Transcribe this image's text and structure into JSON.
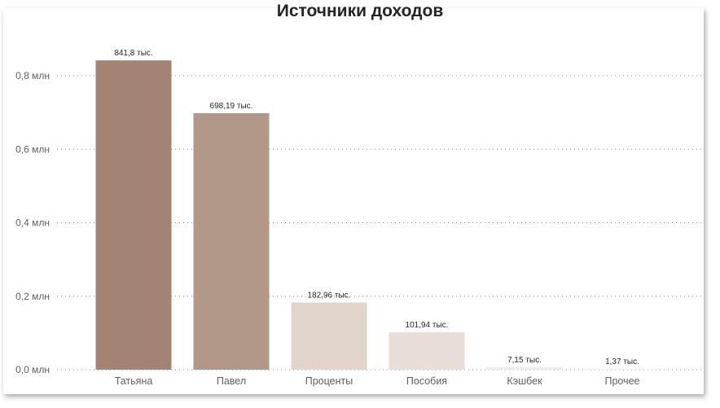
{
  "chart_data": {
    "type": "bar",
    "title": "Источники доходов",
    "categories": [
      "Татьяна",
      "Павел",
      "Проценты",
      "Пособия",
      "Кэшбек",
      "Прочее"
    ],
    "values": [
      841800,
      698190,
      182960,
      101940,
      7150,
      1370
    ],
    "data_labels": [
      "841,8 тыс.",
      "698,19 тыс.",
      "182,96 тыс.",
      "101,94 тыс.",
      "7,15 тыс.",
      "1,37 тыс."
    ],
    "colors": [
      "#a38474",
      "#b19889",
      "#e1d5cb",
      "#e8ded7",
      "#f1ebe6",
      "#f5f0ec"
    ],
    "yticks": [
      {
        "value": 0,
        "label": "0,0 млн"
      },
      {
        "value": 200000,
        "label": "0,2 млн"
      },
      {
        "value": 400000,
        "label": "0,4 млн"
      },
      {
        "value": 600000,
        "label": "0,6 млн"
      },
      {
        "value": 800000,
        "label": "0,8 млн"
      }
    ],
    "ylim": [
      0,
      800000
    ],
    "grid": true,
    "grid_style": "dotted",
    "xlabel": "",
    "ylabel": ""
  }
}
